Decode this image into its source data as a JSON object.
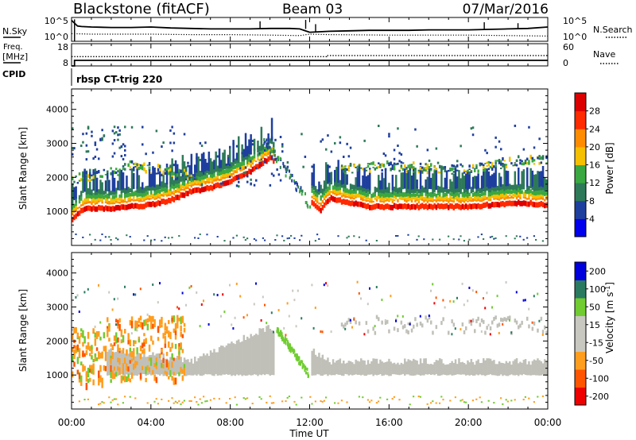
{
  "header": {
    "station": "Blackstone (fitACF)",
    "beam": "Beam 03",
    "date": "07/Mar/2016"
  },
  "noise_panel": {
    "left_label": "N.Sky",
    "right_label": "N.Search",
    "left_ticks": [
      "10^5",
      "10^0"
    ],
    "right_ticks": [
      "10^5",
      "10^0"
    ]
  },
  "freq_panel": {
    "left_label_line1": "Freq.",
    "left_label_line2": "[MHz]",
    "right_label": "Nave",
    "left_ticks": [
      "18",
      "8"
    ],
    "right_ticks": [
      "60",
      "0"
    ]
  },
  "cpid_panel": {
    "label": "CPID",
    "text": "rbsp CT-trig 220"
  },
  "x_axis": {
    "label": "Time UT",
    "tick_labels": [
      "00:00",
      "04:00",
      "08:00",
      "12:00",
      "16:00",
      "20:00",
      "00:00"
    ]
  },
  "colors": {
    "power_scale": [
      "#0000ee",
      "#1f3f9f",
      "#2e7a58",
      "#3aa840",
      "#f4c000",
      "#ff8c00",
      "#ff2a00",
      "#dd0000"
    ],
    "velocity_scale": [
      "#ee0000",
      "#ff5500",
      "#ff9d1e",
      "#c8c8c0",
      "#c8c8c0",
      "#70cc30",
      "#2a7a60",
      "#0000dd"
    ],
    "ground_scatter": "#c0c0b8"
  },
  "chart_data": [
    {
      "type": "line",
      "title": "",
      "xlabel": "",
      "series_left": {
        "name": "N.Sky",
        "scale": "log",
        "ylim_exponent": [
          0,
          5
        ],
        "x_hours": [
          0,
          0.3,
          0.5,
          1,
          2,
          3,
          4,
          5,
          6,
          7,
          8,
          9,
          10,
          11,
          11.5,
          12,
          12.5,
          13,
          14,
          15,
          16,
          17,
          18,
          19,
          20,
          21,
          22,
          23,
          24
        ],
        "y_exponent": [
          4.4,
          3.2,
          3.1,
          3.0,
          2.9,
          2.9,
          3.0,
          2.8,
          2.7,
          2.6,
          2.6,
          2.6,
          2.7,
          2.7,
          2.6,
          1.9,
          2.0,
          2.1,
          2.2,
          2.3,
          2.3,
          2.3,
          2.4,
          2.4,
          2.4,
          2.5,
          2.6,
          2.7,
          3.0
        ]
      },
      "series_right": {
        "name": "N.Search",
        "scale": "log",
        "ylim_exponent": [
          0,
          5
        ],
        "x_hours": [
          0,
          1,
          2,
          4,
          6,
          8,
          10,
          11.5,
          12,
          13,
          16,
          20,
          24
        ],
        "y_exponent": [
          1.6,
          1.5,
          1.5,
          1.5,
          1.4,
          1.4,
          1.3,
          1.2,
          1.5,
          1.4,
          1.3,
          1.3,
          1.1
        ]
      }
    },
    {
      "type": "line",
      "title": "",
      "xlabel": "",
      "series_left": {
        "name": "Freq.",
        "ylim": [
          8,
          18
        ],
        "x_hours": [
          0,
          0.15,
          0.15,
          24
        ],
        "y": [
          8,
          8,
          10.5,
          10.5
        ]
      },
      "series_right": {
        "name": "Nave",
        "ylim": [
          0,
          60
        ],
        "x_hours": [
          0,
          12.85,
          12.85,
          24
        ],
        "y": [
          25,
          25,
          28,
          28
        ]
      }
    },
    {
      "type": "heatmap",
      "title": "",
      "xlabel": "",
      "ylabel": "Slant Range [km]",
      "x_range_hours": [
        0,
        24
      ],
      "ylim": [
        0,
        4600
      ],
      "yticks": [
        1000,
        2000,
        3000,
        4000
      ],
      "colorbar": {
        "label": "Power [dB]",
        "range": [
          0,
          32
        ],
        "ticks": [
          "4",
          "8",
          "12",
          "16",
          "20",
          "24",
          "28"
        ]
      },
      "main_band": {
        "x_hours": [
          0,
          0.5,
          1,
          2,
          3,
          4,
          5,
          6,
          7,
          8,
          9,
          10,
          11,
          12,
          12.5,
          13,
          14,
          15,
          16,
          17,
          18,
          19,
          20,
          21,
          22,
          23,
          24
        ],
        "range_km": [
          800,
          1050,
          1100,
          1100,
          1150,
          1200,
          1350,
          1600,
          1700,
          1900,
          2200,
          2600,
          2000,
          1300,
          1050,
          1400,
          1250,
          1150,
          1150,
          1150,
          1150,
          1150,
          1150,
          1200,
          1250,
          1250,
          1200
        ]
      },
      "upper_band": {
        "x_hours": [
          0,
          1,
          2,
          3,
          4,
          5,
          6,
          14,
          16,
          18,
          20,
          22,
          24
        ],
        "range_km": [
          1900,
          2000,
          2100,
          2300,
          2200,
          2100,
          2000,
          2200,
          2300,
          2200,
          2200,
          2400,
          2500
        ]
      }
    },
    {
      "type": "heatmap",
      "title": "",
      "xlabel": "Time UT",
      "ylabel": "Slant Range [km]",
      "x_range_hours": [
        0,
        24
      ],
      "ylim": [
        0,
        4600
      ],
      "yticks": [
        1000,
        2000,
        3000,
        4000
      ],
      "colorbar": {
        "label": "Velocity [m s^-1]",
        "bins": [
          "-200",
          "-100",
          "-50",
          "-15",
          "15",
          "50",
          "100",
          "200"
        ],
        "ticks": [
          "200",
          "100",
          "50",
          "15",
          "-15",
          "-50",
          "-100",
          "-200"
        ]
      },
      "ground_scatter_band": {
        "x_hours": [
          2,
          4,
          6,
          7,
          8,
          9,
          10,
          13,
          16,
          20,
          24
        ],
        "range_km": [
          1700,
          1600,
          1400,
          1700,
          1900,
          2200,
          2400,
          1400,
          1400,
          1400,
          1400
        ]
      }
    }
  ]
}
